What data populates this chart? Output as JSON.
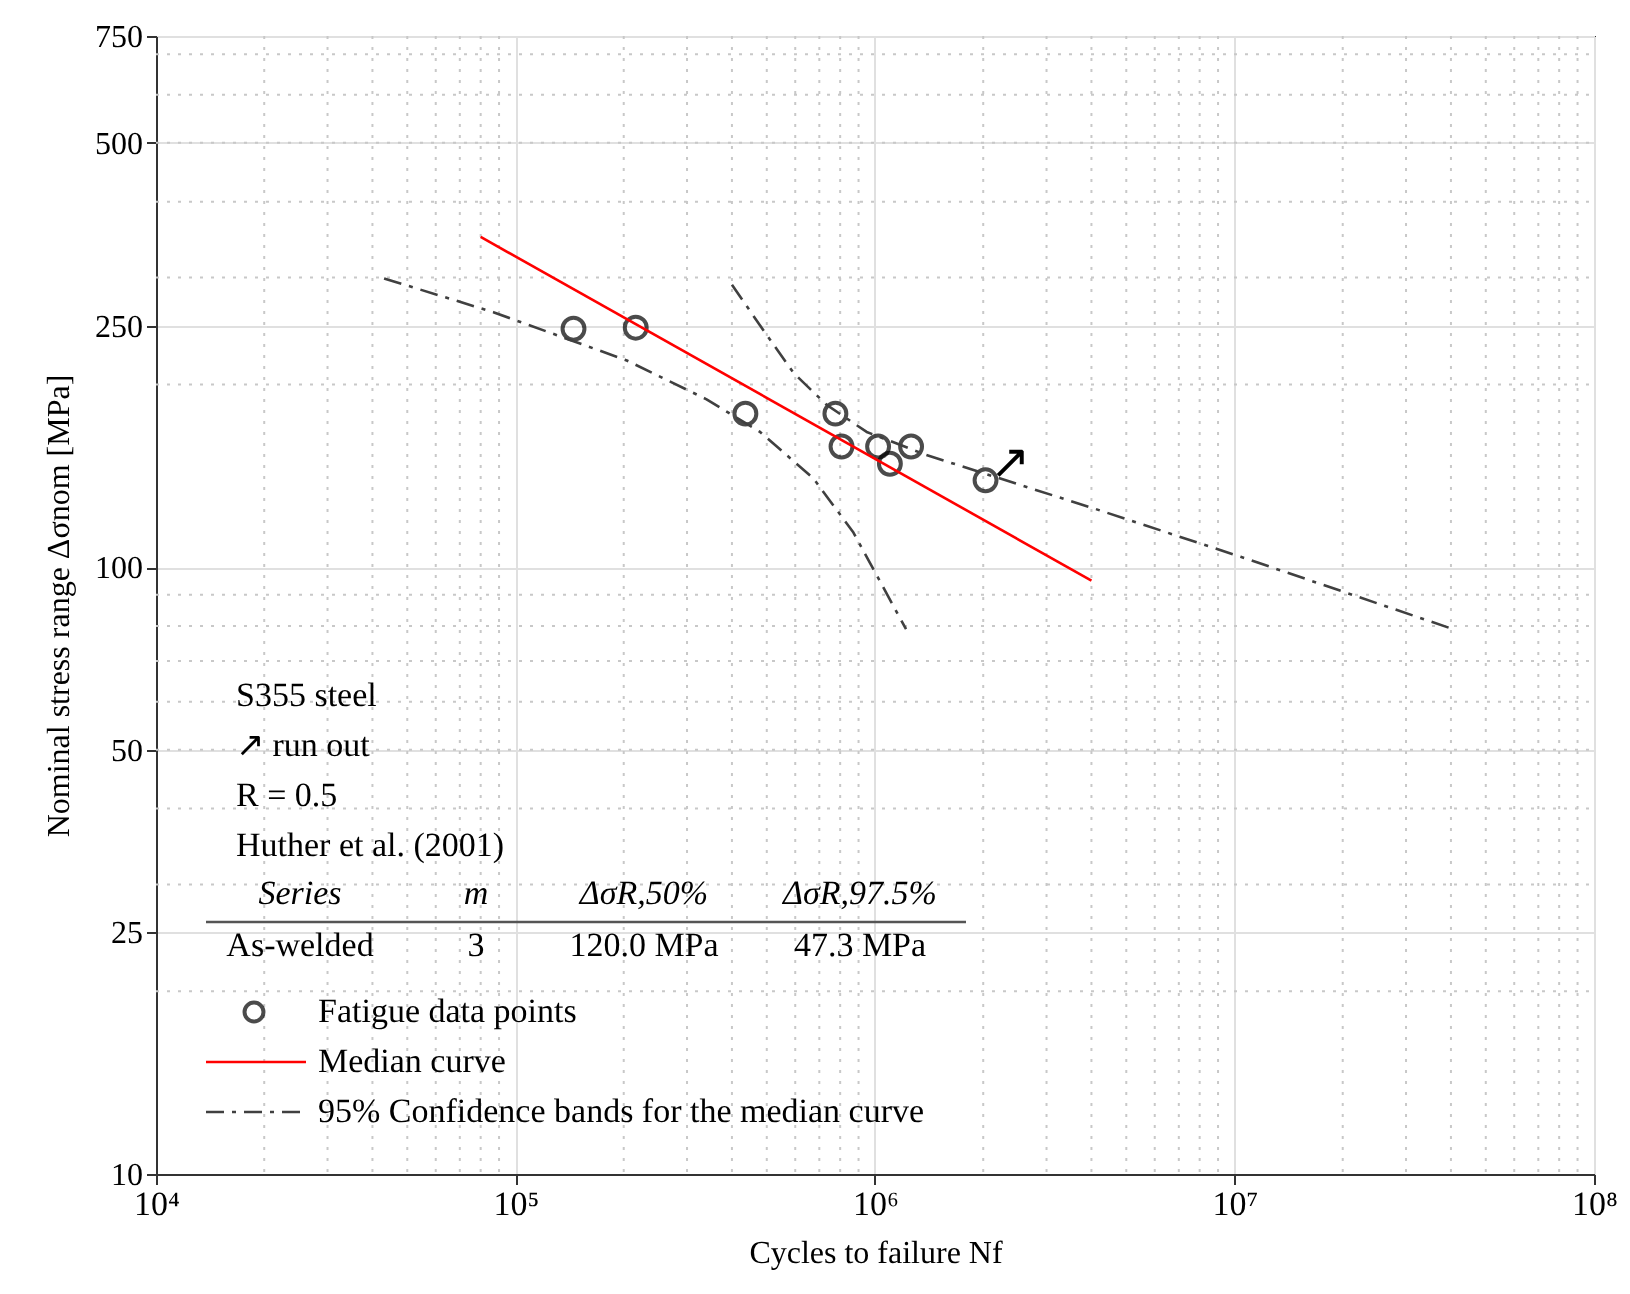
{
  "chart_data": {
    "type": "scatter",
    "xlabel": "Cycles to failure Nf",
    "ylabel": "Nominal stress range Δσnom [MPa]",
    "log": "xy",
    "grid": true,
    "legend": "bottom left",
    "xlim": [
      10000,
      100000000
    ],
    "xticks": [
      {
        "value": 10000,
        "label": "10⁴"
      },
      {
        "value": 100000,
        "label": "10⁵"
      },
      {
        "value": 1000000,
        "label": "10⁶"
      },
      {
        "value": 10000000,
        "label": "10⁷"
      },
      {
        "value": 100000000,
        "label": "10⁸"
      }
    ],
    "ylim": [
      10,
      750
    ],
    "yticks": [
      10,
      25,
      50,
      100,
      250,
      500,
      750
    ],
    "series": [
      {
        "name": "Fatigue data points",
        "type": "scatter",
        "marker": "circle",
        "color": "#000000",
        "x": [
          145000,
          216000,
          436000,
          776000,
          807000,
          1020000,
          1100000,
          1260000,
          2030000
        ],
        "values": [
          247,
          248,
          179,
          179,
          158,
          158,
          148,
          158,
          139
        ]
      },
      {
        "name": "Median curve",
        "type": "line",
        "color": "#ff0000",
        "line_style": "solid",
        "x": [
          80000,
          4000000
        ],
        "values": [
          350,
          95
        ]
      },
      {
        "name": "95% Confidence bands for the median curve",
        "type": "line",
        "color": "#404040",
        "line_style": "dashdot",
        "x": [
          400000,
          479000,
          593000,
          734000,
          948000,
          1390000,
          4050000,
          10400000,
          40600000
        ],
        "values": [
          292,
          250,
          209,
          185,
          167,
          153,
          125,
          104,
          79
        ]
      },
      {
        "type": "line",
        "color": "#404040",
        "line_style": "dashdot",
        "x": [
          43100,
          86800,
          204000,
          340000,
          479000,
          674000,
          871000,
          1220000
        ],
        "values": [
          299,
          263,
          219,
          189,
          167,
          140,
          114,
          79
        ]
      }
    ],
    "annotations": [
      "↗",
      "S355 steel",
      "↗ run out",
      "R = 0.5",
      "Huther et al. (2001)",
      "Series",
      "m",
      "ΔσR,50%",
      "ΔσR,97.5%",
      "As-welded",
      "3",
      "120.0 MPa",
      "47.3 MPa"
    ]
  }
}
